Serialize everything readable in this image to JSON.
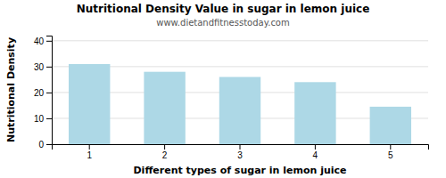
{
  "chart_data": {
    "type": "bar",
    "title": "Nutritional Density Value in sugar in lemon juice",
    "subtitle": "www.dietandfitnesstoday.com",
    "xlabel": "Different types of sugar in lemon juice",
    "ylabel": "Nutritional Density",
    "categories": [
      1,
      2,
      3,
      4,
      5
    ],
    "values": [
      31,
      28,
      26,
      24,
      14.5
    ],
    "color": "#add8e6",
    "ylim": [
      0,
      42
    ],
    "yticks": [
      0,
      10,
      20,
      30,
      40
    ],
    "grid": true
  }
}
